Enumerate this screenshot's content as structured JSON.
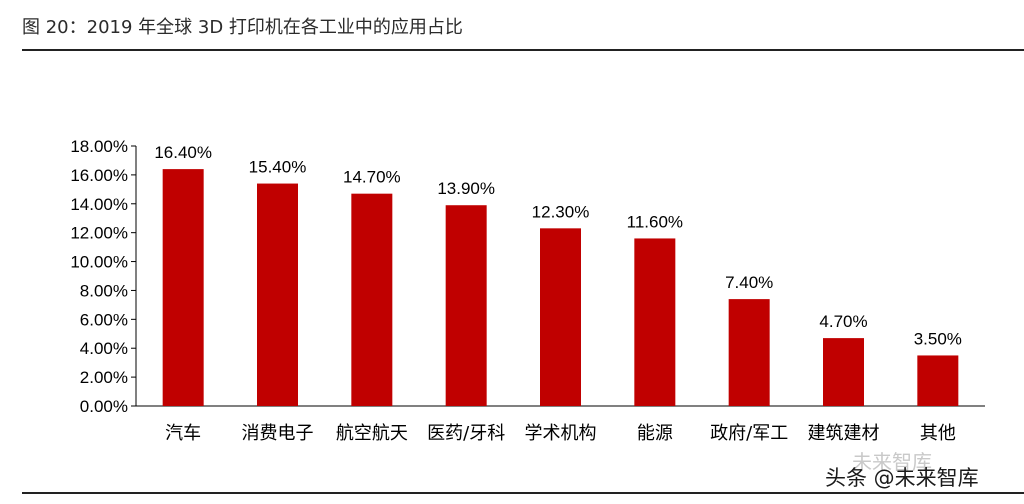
{
  "title": "图 20：2019 年全球 3D 打印机在各工业中的应用占比",
  "watermark": "头条 @未来智库",
  "watermark_shadow": "未来智库",
  "colors": {
    "bar": "#c00000",
    "axis": "#000000",
    "text": "#000000"
  },
  "chart_data": {
    "type": "bar",
    "title": "",
    "xlabel": "",
    "ylabel": "",
    "categories": [
      "汽车",
      "消费电子",
      "航空航天",
      "医药/牙科",
      "学术机构",
      "能源",
      "政府/军工",
      "建筑建材",
      "其他"
    ],
    "values": [
      16.4,
      15.4,
      14.7,
      13.9,
      12.3,
      11.6,
      7.4,
      4.7,
      3.5
    ],
    "data_labels": [
      "16.40%",
      "15.40%",
      "14.70%",
      "13.90%",
      "12.30%",
      "11.60%",
      "7.40%",
      "4.70%",
      "3.50%"
    ],
    "ylim": [
      0,
      18
    ],
    "yticks": [
      "0.00%",
      "2.00%",
      "4.00%",
      "6.00%",
      "8.00%",
      "10.00%",
      "12.00%",
      "14.00%",
      "16.00%",
      "18.00%"
    ],
    "grid": false,
    "legend": "none"
  }
}
